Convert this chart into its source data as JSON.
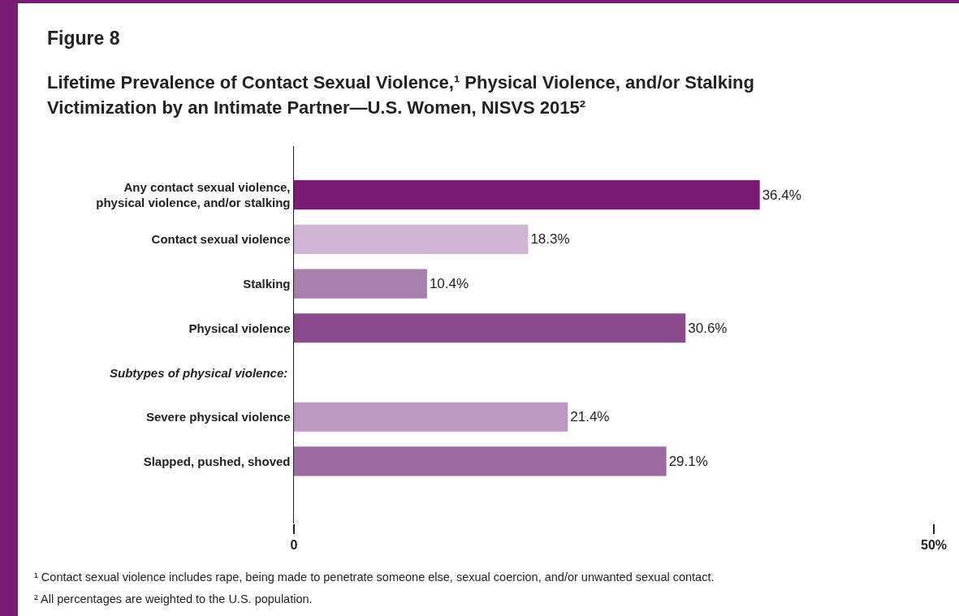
{
  "chart_data": {
    "type": "bar",
    "orientation": "horizontal",
    "title": "Figure 8",
    "subtitle": "Lifetime Prevalence of Contact Sexual Violence,¹ Physical Violence, and/or Stalking Victimization by an Intimate Partner—U.S. Women, NISVS 2015²",
    "categories": [
      "Any contact sexual violence,\nphysical violence, and/or stalking",
      "Contact sexual violence",
      "Stalking",
      "Physical violence",
      null,
      "Severe physical violence",
      "Slapped, pushed, shoved"
    ],
    "values": [
      36.4,
      18.3,
      10.4,
      30.6,
      null,
      21.4,
      29.1
    ],
    "colors": [
      "#7b1a74",
      "#cfb5d5",
      "#a87fad",
      "#8a4a8d",
      null,
      "#bc98c3",
      "#9e6aa3"
    ],
    "value_labels": [
      "36.4%",
      "18.3%",
      "10.4%",
      "30.6%",
      null,
      "21.4%",
      "29.1%"
    ],
    "xlim": [
      0,
      50
    ],
    "xticks": [
      0,
      {
        "value": 50,
        "label": "50%"
      }
    ],
    "annotations": [
      "Subtypes of physical violence:",
      "¹ Contact sexual violence includes rape, being made to penetrate someone else, sexual coercion, and/or unwanted sexual contact.",
      "² All percentages are weighted to the U.S. population."
    ]
  }
}
